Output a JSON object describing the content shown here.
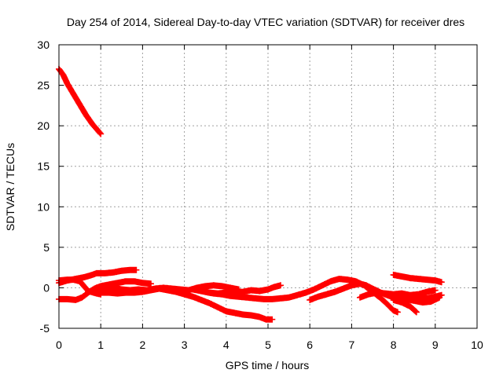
{
  "chart_data": {
    "type": "scatter",
    "title": "Day 254 of 2014, Sidereal Day-to-day VTEC variation (SDTVAR) for receiver dres",
    "xlabel": "GPS time / hours",
    "ylabel": "SDTVAR / TECUs",
    "xlim": [
      0,
      10
    ],
    "ylim": [
      -5,
      30
    ],
    "xticks": [
      "0",
      "1",
      "2",
      "3",
      "4",
      "5",
      "6",
      "7",
      "8",
      "9",
      "10"
    ],
    "yticks": [
      "-5",
      "0",
      "5",
      "10",
      "15",
      "20",
      "25",
      "30"
    ],
    "grid": true,
    "marker": "plus",
    "color": "#ff0000",
    "series": [
      {
        "points": [
          [
            0.0,
            27.0
          ],
          [
            0.1,
            26.3
          ],
          [
            0.2,
            25.2
          ],
          [
            0.35,
            23.9
          ],
          [
            0.5,
            22.6
          ],
          [
            0.65,
            21.3
          ],
          [
            0.8,
            20.2
          ],
          [
            0.9,
            19.6
          ],
          [
            1.0,
            19.0
          ]
        ]
      },
      {
        "points": [
          [
            0.0,
            0.6
          ],
          [
            0.2,
            0.9
          ],
          [
            0.4,
            1.1
          ],
          [
            0.6,
            1.3
          ],
          [
            0.8,
            1.6
          ],
          [
            0.9,
            1.8
          ],
          [
            1.1,
            1.8
          ],
          [
            1.3,
            1.9
          ],
          [
            1.5,
            2.1
          ],
          [
            1.7,
            2.2
          ],
          [
            1.85,
            2.2
          ]
        ]
      },
      {
        "points": [
          [
            0.0,
            0.9
          ],
          [
            0.2,
            1.0
          ],
          [
            0.35,
            1.0
          ],
          [
            0.5,
            0.8
          ],
          [
            0.6,
            0.2
          ],
          [
            0.7,
            -0.4
          ],
          [
            0.9,
            -0.7
          ],
          [
            1.0,
            -0.8
          ]
        ]
      },
      {
        "points": [
          [
            0.0,
            -1.4
          ],
          [
            0.2,
            -1.4
          ],
          [
            0.4,
            -1.5
          ],
          [
            0.55,
            -1.2
          ],
          [
            0.7,
            -0.6
          ],
          [
            0.85,
            -0.1
          ],
          [
            1.0,
            0.2
          ],
          [
            1.2,
            0.4
          ],
          [
            1.4,
            0.6
          ],
          [
            1.6,
            0.8
          ],
          [
            1.8,
            0.8
          ],
          [
            2.0,
            0.6
          ],
          [
            2.2,
            0.5
          ]
        ]
      },
      {
        "points": [
          [
            0.9,
            0.0
          ],
          [
            1.1,
            -0.1
          ],
          [
            1.3,
            0.0
          ],
          [
            1.5,
            -0.2
          ],
          [
            1.7,
            -0.3
          ],
          [
            1.9,
            -0.2
          ],
          [
            2.1,
            -0.3
          ],
          [
            2.3,
            -0.1
          ],
          [
            2.5,
            0.0
          ],
          [
            2.7,
            -0.1
          ],
          [
            2.9,
            -0.2
          ],
          [
            3.1,
            -0.3
          ],
          [
            3.3,
            0.0
          ],
          [
            3.5,
            0.2
          ],
          [
            3.7,
            0.3
          ],
          [
            3.9,
            0.2
          ],
          [
            4.1,
            0.0
          ],
          [
            4.3,
            -0.2
          ]
        ]
      },
      {
        "points": [
          [
            1.0,
            -0.6
          ],
          [
            1.2,
            -0.6
          ],
          [
            1.4,
            -0.7
          ],
          [
            1.6,
            -0.6
          ],
          [
            1.8,
            -0.6
          ],
          [
            2.0,
            -0.5
          ],
          [
            2.2,
            -0.3
          ],
          [
            2.4,
            -0.1
          ],
          [
            2.6,
            -0.3
          ],
          [
            2.8,
            -0.5
          ],
          [
            3.0,
            -0.8
          ],
          [
            3.2,
            -1.1
          ],
          [
            3.4,
            -1.5
          ],
          [
            3.6,
            -1.9
          ],
          [
            3.8,
            -2.4
          ],
          [
            4.0,
            -2.9
          ],
          [
            4.2,
            -3.1
          ],
          [
            4.4,
            -3.3
          ],
          [
            4.6,
            -3.4
          ],
          [
            4.8,
            -3.6
          ],
          [
            4.95,
            -3.9
          ],
          [
            5.1,
            -3.9
          ]
        ]
      },
      {
        "points": [
          [
            3.2,
            -0.2
          ],
          [
            3.4,
            -0.4
          ],
          [
            3.6,
            -0.6
          ],
          [
            3.8,
            -0.7
          ],
          [
            4.0,
            -0.6
          ],
          [
            4.2,
            -0.6
          ],
          [
            4.4,
            -0.5
          ],
          [
            4.6,
            -0.3
          ],
          [
            4.8,
            -0.4
          ],
          [
            5.0,
            -0.2
          ],
          [
            5.15,
            0.1
          ],
          [
            5.3,
            0.3
          ]
        ]
      },
      {
        "points": [
          [
            3.5,
            -0.5
          ],
          [
            3.7,
            -0.7
          ],
          [
            3.9,
            -0.8
          ],
          [
            4.1,
            -1.0
          ],
          [
            4.3,
            -1.1
          ],
          [
            4.5,
            -1.2
          ],
          [
            4.7,
            -1.3
          ],
          [
            4.9,
            -1.4
          ],
          [
            5.1,
            -1.4
          ],
          [
            5.3,
            -1.3
          ],
          [
            5.5,
            -1.2
          ],
          [
            5.7,
            -0.9
          ],
          [
            5.9,
            -0.6
          ],
          [
            6.1,
            -0.2
          ],
          [
            6.3,
            0.3
          ],
          [
            6.5,
            0.8
          ],
          [
            6.7,
            1.1
          ],
          [
            6.9,
            1.0
          ],
          [
            7.1,
            0.8
          ],
          [
            7.3,
            0.3
          ],
          [
            7.5,
            -0.5
          ],
          [
            7.7,
            -1.3
          ],
          [
            7.85,
            -2.0
          ],
          [
            8.0,
            -2.8
          ],
          [
            8.1,
            -3.0
          ]
        ]
      },
      {
        "points": [
          [
            6.0,
            -1.5
          ],
          [
            6.2,
            -1.1
          ],
          [
            6.4,
            -0.8
          ],
          [
            6.6,
            -0.5
          ],
          [
            6.8,
            -0.1
          ],
          [
            7.0,
            0.3
          ],
          [
            7.2,
            0.5
          ],
          [
            7.35,
            0.3
          ],
          [
            7.5,
            -0.1
          ],
          [
            7.7,
            -0.6
          ],
          [
            7.9,
            -1.0
          ],
          [
            8.1,
            -1.2
          ],
          [
            8.3,
            -1.4
          ],
          [
            8.5,
            -1.6
          ],
          [
            8.7,
            -1.8
          ],
          [
            8.9,
            -1.7
          ],
          [
            9.1,
            -1.2
          ]
        ]
      },
      {
        "points": [
          [
            7.2,
            -1.2
          ],
          [
            7.4,
            -0.8
          ],
          [
            7.6,
            -0.6
          ],
          [
            7.8,
            -0.7
          ],
          [
            8.0,
            -0.8
          ],
          [
            8.2,
            -0.7
          ],
          [
            8.4,
            -0.9
          ],
          [
            8.6,
            -0.8
          ],
          [
            8.8,
            -0.5
          ],
          [
            9.0,
            -0.3
          ]
        ]
      },
      {
        "points": [
          [
            8.0,
            -1.5
          ],
          [
            8.2,
            -1.8
          ],
          [
            8.4,
            -2.3
          ],
          [
            8.55,
            -3.0
          ]
        ]
      },
      {
        "points": [
          [
            8.0,
            1.6
          ],
          [
            8.2,
            1.4
          ],
          [
            8.4,
            1.2
          ],
          [
            8.6,
            1.1
          ],
          [
            8.8,
            1.0
          ],
          [
            9.0,
            0.9
          ],
          [
            9.15,
            0.7
          ]
        ]
      },
      {
        "points": [
          [
            8.4,
            -1.1
          ],
          [
            8.6,
            -1.3
          ],
          [
            8.8,
            -1.3
          ],
          [
            9.0,
            -1.1
          ],
          [
            9.15,
            -0.9
          ]
        ]
      }
    ]
  }
}
